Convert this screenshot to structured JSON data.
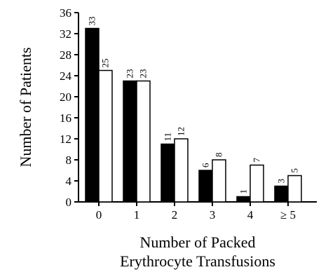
{
  "chart_data": {
    "type": "bar",
    "title": "",
    "xlabel_lines": [
      "Number of Packed",
      "Erythrocyte Transfusions"
    ],
    "ylabel": "Number of Patients",
    "categories": [
      "0",
      "1",
      "2",
      "3",
      "4",
      "≥ 5"
    ],
    "ylim": [
      0,
      36
    ],
    "yticks": [
      "0",
      "4",
      "8",
      "12",
      "16",
      "20",
      "24",
      "28",
      "32",
      "36"
    ],
    "grid": false,
    "legend": "none",
    "series": [
      {
        "fill": "#000000",
        "values": [
          33,
          23,
          11,
          6,
          1,
          3
        ],
        "labels": [
          "33",
          "23",
          "11",
          "6",
          "1",
          "3"
        ]
      },
      {
        "fill": "#ffffff",
        "values": [
          25,
          23,
          12,
          8,
          7,
          5
        ],
        "labels": [
          "25",
          "23",
          "12",
          "8",
          "7",
          "5"
        ]
      }
    ]
  }
}
